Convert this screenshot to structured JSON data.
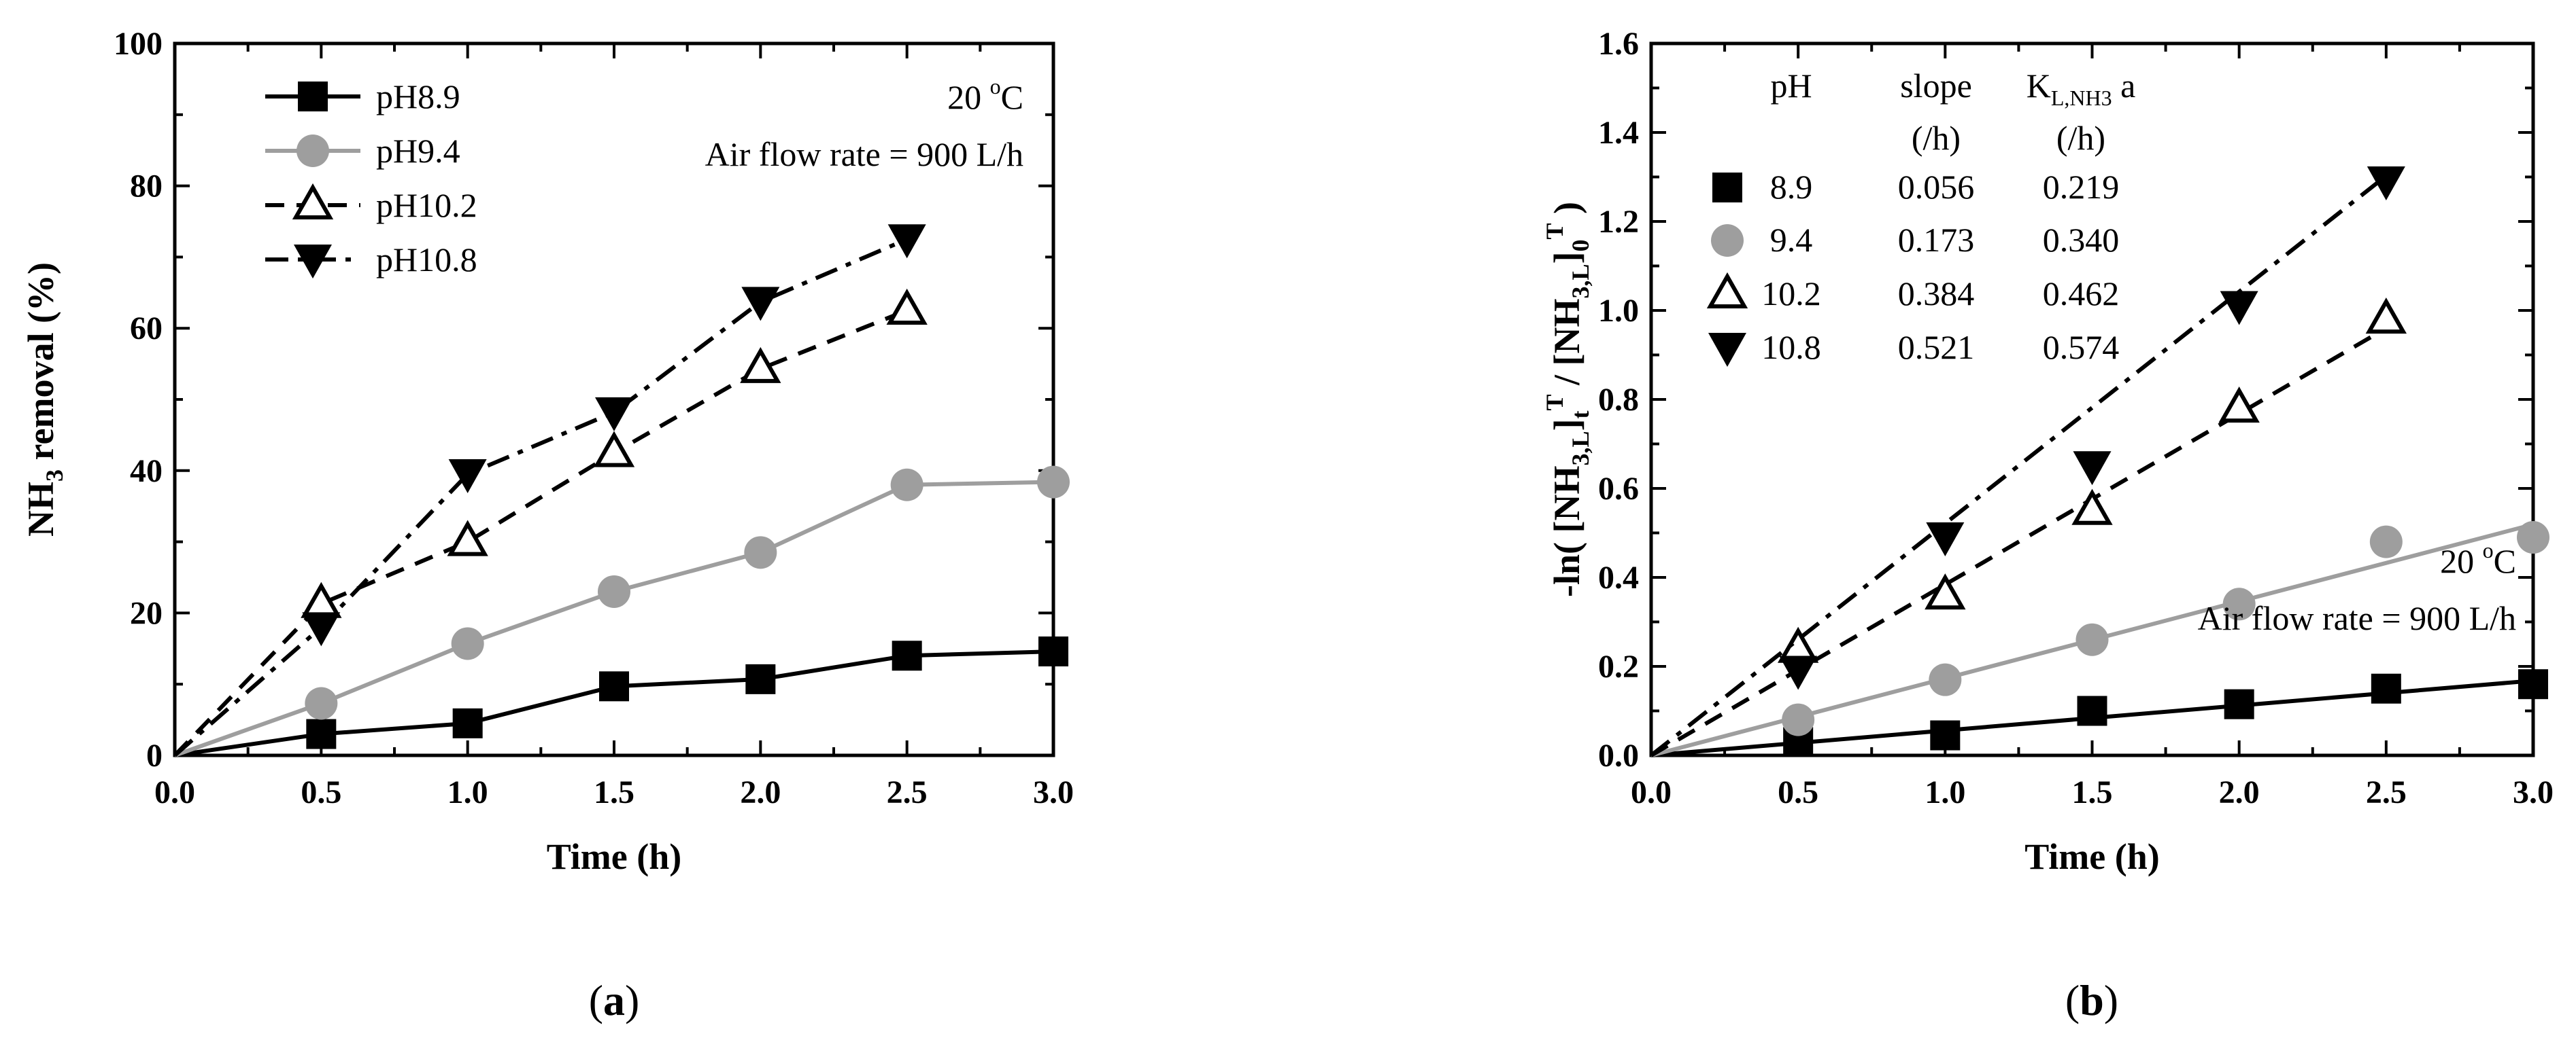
{
  "chart_data": [
    {
      "panel": "a",
      "panel_label": "(a)",
      "panel_letter": "a",
      "type": "line",
      "xlabel": "Time (h)",
      "ylabel": {
        "pre": "NH",
        "sub": "3",
        "post": " removal (%)"
      },
      "xlim": [
        0,
        3
      ],
      "ylim": [
        0,
        100
      ],
      "xticks": [
        "0.0",
        "0.5",
        "1.0",
        "1.5",
        "2.0",
        "2.5",
        "3.0"
      ],
      "yticks": [
        "0",
        "20",
        "40",
        "60",
        "80",
        "100"
      ],
      "annotations": {
        "temperature": {
          "value": "20 ",
          "sup": "o",
          "unit": "C"
        },
        "airflow": "Air flow rate = 900 L/h"
      },
      "series": [
        {
          "name": "pH8.9",
          "marker": "square",
          "color": "#000000",
          "dash": "solid",
          "x": [
            0,
            0.5,
            1.0,
            1.5,
            2.0,
            2.5,
            3.0
          ],
          "y": [
            0,
            3.0,
            4.5,
            9.7,
            10.7,
            14.0,
            14.6
          ]
        },
        {
          "name": "pH9.4",
          "marker": "circle",
          "color": "#9e9e9e",
          "dash": "solid",
          "x": [
            0,
            0.5,
            1.0,
            1.5,
            2.0,
            2.5,
            3.0
          ],
          "y": [
            0,
            7.3,
            15.7,
            23.0,
            28.5,
            38.0,
            38.4
          ]
        },
        {
          "name": "pH10.2",
          "marker": "triangle-up-open",
          "color": "#000000",
          "dash": "dash",
          "x": [
            0,
            0.5,
            1.0,
            1.5,
            2.0,
            2.5
          ],
          "y": [
            0,
            21.3,
            30.0,
            42.5,
            54.3,
            62.5
          ]
        },
        {
          "name": "pH10.8",
          "marker": "triangle-down",
          "color": "#000000",
          "dash": "dashdot",
          "x": [
            0,
            0.5,
            1.0,
            1.5,
            2.0,
            2.5
          ],
          "y": [
            0,
            18.0,
            39.5,
            48.2,
            63.7,
            72.5
          ]
        }
      ]
    },
    {
      "panel": "b",
      "panel_label": "(b)",
      "panel_letter": "b",
      "type": "scatter",
      "xlabel": "Time (h)",
      "ylabel_text": "-ln( [NH3,Lt]T / [NH3,L0]T )",
      "xlim": [
        0,
        3
      ],
      "ylim": [
        0,
        1.6
      ],
      "xticks": [
        "0.0",
        "0.5",
        "1.0",
        "1.5",
        "2.0",
        "2.5",
        "3.0"
      ],
      "yticks": [
        "0.0",
        "0.2",
        "0.4",
        "0.6",
        "0.8",
        "1.0",
        "1.2",
        "1.4",
        "1.6"
      ],
      "annotations": {
        "temperature": {
          "value": "20 ",
          "sup": "o",
          "unit": "C"
        },
        "airflow": "Air flow rate = 900 L/h"
      },
      "legend_table": {
        "col_ph": "pH",
        "col_slope": "slope",
        "col_slope_unit": "(/h)",
        "col_kla_main": "K",
        "col_kla_sub": "L,NH3",
        "col_kla_tail": " a",
        "col_kla_unit": "(/h)",
        "rows": [
          {
            "ph": "8.9",
            "slope": "0.056",
            "kla": "0.219"
          },
          {
            "ph": "9.4",
            "slope": "0.173",
            "kla": "0.340"
          },
          {
            "ph": "10.2",
            "slope": "0.384",
            "kla": "0.462"
          },
          {
            "ph": "10.8",
            "slope": "0.521",
            "kla": "0.574"
          }
        ]
      },
      "series": [
        {
          "name": "8.9",
          "marker": "square",
          "color": "#000000",
          "dash": "solid",
          "slope": 0.056,
          "fit_xmax": 3.0,
          "x": [
            0.5,
            1.0,
            1.5,
            2.0,
            2.5,
            3.0
          ],
          "y": [
            0.03,
            0.045,
            0.1,
            0.115,
            0.15,
            0.16
          ]
        },
        {
          "name": "9.4",
          "marker": "circle",
          "color": "#9e9e9e",
          "dash": "solid",
          "slope": 0.173,
          "fit_xmax": 3.0,
          "x": [
            0.5,
            1.0,
            1.5,
            2.0,
            2.5,
            3.0
          ],
          "y": [
            0.08,
            0.17,
            0.26,
            0.34,
            0.48,
            0.49
          ]
        },
        {
          "name": "10.2",
          "marker": "triangle-up-open",
          "color": "#000000",
          "dash": "dash",
          "slope": 0.384,
          "fit_xmax": 2.5,
          "x": [
            0.5,
            1.0,
            1.5,
            2.0,
            2.5
          ],
          "y": [
            0.24,
            0.36,
            0.55,
            0.78,
            0.98
          ]
        },
        {
          "name": "10.8",
          "marker": "triangle-down",
          "color": "#000000",
          "dash": "dashdot",
          "slope": 0.521,
          "fit_xmax": 2.5,
          "x": [
            0.5,
            1.0,
            1.5,
            2.0,
            2.5
          ],
          "y": [
            0.19,
            0.49,
            0.65,
            1.01,
            1.29
          ]
        }
      ]
    }
  ]
}
